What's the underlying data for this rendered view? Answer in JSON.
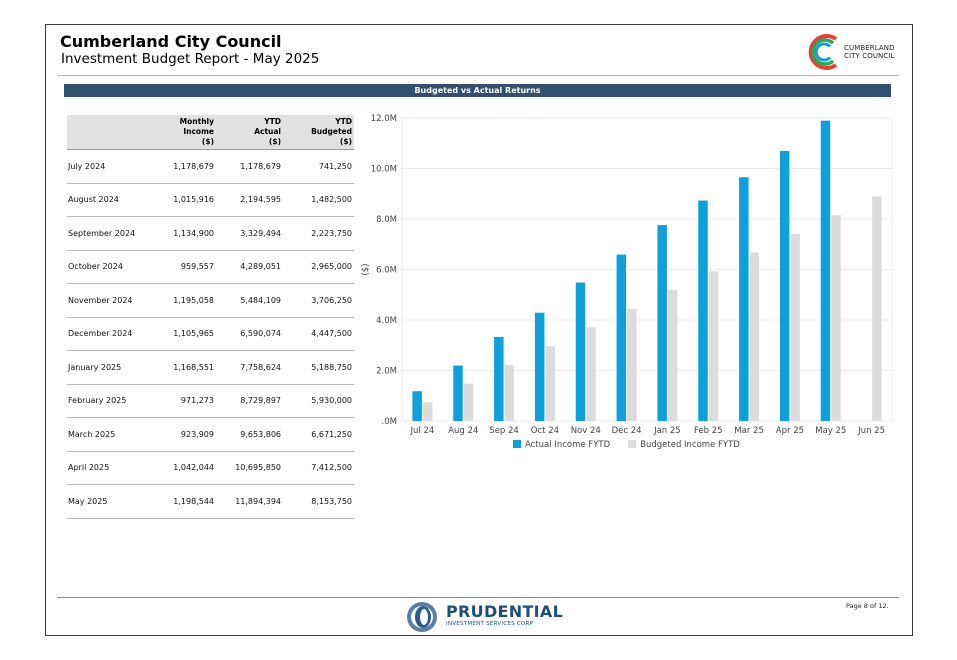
{
  "header": {
    "title": "Cumberland City Council",
    "subtitle": "Investment Budget Report - May 2025",
    "logo_text_line1": "CUMBERLAND",
    "logo_text_line2": "CITY COUNCIL"
  },
  "section": {
    "title": "Budgeted vs Actual Returns"
  },
  "table": {
    "headers": [
      [
        "",
        "",
        ""
      ],
      [
        "Monthly",
        "Income",
        "($)"
      ],
      [
        "YTD",
        "Actual",
        "($)"
      ],
      [
        "YTD",
        "Budgeted",
        "($)"
      ]
    ],
    "rows": [
      [
        "July 2024",
        "1,178,679",
        "1,178,679",
        "741,250"
      ],
      [
        "August 2024",
        "1,015,916",
        "2,194,595",
        "1,482,500"
      ],
      [
        "September 2024",
        "1,134,900",
        "3,329,494",
        "2,223,750"
      ],
      [
        "October 2024",
        "959,557",
        "4,289,051",
        "2,965,000"
      ],
      [
        "November 2024",
        "1,195,058",
        "5,484,109",
        "3,706,250"
      ],
      [
        "December 2024",
        "1,105,965",
        "6,590,074",
        "4,447,500"
      ],
      [
        "January 2025",
        "1,168,551",
        "7,758,624",
        "5,188,750"
      ],
      [
        "February 2025",
        "971,273",
        "8,729,897",
        "5,930,000"
      ],
      [
        "March 2025",
        "923,909",
        "9,653,806",
        "6,671,250"
      ],
      [
        "April 2025",
        "1,042,044",
        "10,695,850",
        "7,412,500"
      ],
      [
        "May 2025",
        "1,198,544",
        "11,894,394",
        "8,153,750"
      ]
    ]
  },
  "chart_data": {
    "type": "bar",
    "title": "",
    "xlabel": "",
    "ylabel": "($)",
    "categories": [
      "Jul 24",
      "Aug 24",
      "Sep 24",
      "Oct 24",
      "Nov 24",
      "Dec 24",
      "Jan 25",
      "Feb 25",
      "Mar 25",
      "Apr 25",
      "May 25",
      "Jun 25"
    ],
    "series": [
      {
        "name": "Actual Income FYTD",
        "color": "#0fa0dc",
        "values": [
          1178679,
          2194595,
          3329494,
          4289051,
          5484109,
          6590074,
          7758624,
          8729897,
          9653806,
          10695850,
          11894394,
          null
        ]
      },
      {
        "name": "Budgeted Income FYTD",
        "color": "#dcdcdc",
        "values": [
          741250,
          1482500,
          2223750,
          2965000,
          3706250,
          4447500,
          5188750,
          5930000,
          6671250,
          7412500,
          8153750,
          8895000
        ]
      }
    ],
    "ylim": [
      0,
      12000000
    ],
    "yticks": [
      ".0M",
      "2.0M",
      "4.0M",
      "6.0M",
      "8.0M",
      "10.0M",
      "12.0M"
    ],
    "grid": true,
    "legend_position": "bottom"
  },
  "footer": {
    "brand_name": "PRUDENTIAL",
    "brand_sub": "INVESTMENT SERVICES CORP",
    "page_number": "Page 8 of 12."
  }
}
